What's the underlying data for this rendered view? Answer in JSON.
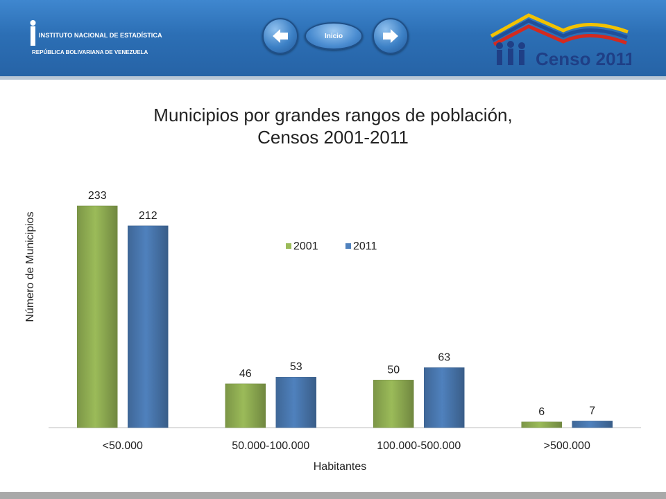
{
  "header": {
    "ine_logo": {
      "line1": "INSTITUTO NACIONAL DE ESTADÍSTICA",
      "line2": "REPÚBLICA BOLIVARIANA DE VENEZUELA"
    },
    "nav": {
      "prev_icon": "arrow-left-icon",
      "home_label": "Inicio",
      "next_icon": "arrow-right-icon"
    },
    "censo_logo_text": "Censo 2011"
  },
  "colors": {
    "header_blue": "#2c6fb5",
    "series_2001": "#9bbb59",
    "series_2011": "#4f81bd"
  },
  "chart_data": {
    "type": "bar",
    "title_line1": "Municipios por grandes rangos de población,",
    "title_line2": "Censos 2001-2011",
    "xlabel": "Habitantes",
    "ylabel": "Número de Municipios",
    "categories": [
      "<50.000",
      "50.000-100.000",
      "100.000-500.000",
      ">500.000"
    ],
    "series": [
      {
        "name": "2001",
        "values": [
          233,
          46,
          50,
          6
        ],
        "color": "#9bbb59"
      },
      {
        "name": "2011",
        "values": [
          212,
          53,
          63,
          7
        ],
        "color": "#4f81bd"
      }
    ],
    "ylim": [
      0,
      250
    ],
    "grid": false,
    "legend_position": "center"
  }
}
